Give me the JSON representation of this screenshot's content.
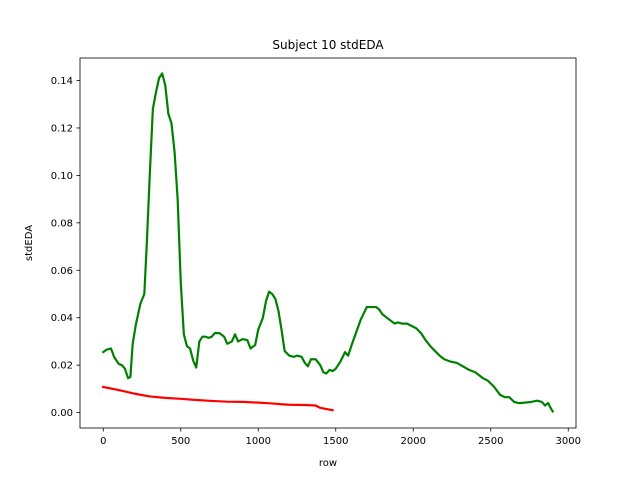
{
  "chart_data": {
    "type": "line",
    "title": "Subject 10 stdEDA",
    "xlabel": "row",
    "ylabel": "stdEDA",
    "xlim": [
      -150,
      3050
    ],
    "ylim": [
      -0.0065,
      0.1495
    ],
    "grid": false,
    "x_ticks": [
      0,
      500,
      1000,
      1500,
      2000,
      2500,
      3000
    ],
    "x_tick_labels": [
      "0",
      "500",
      "1000",
      "1500",
      "2000",
      "2500",
      "3000"
    ],
    "y_ticks": [
      0.0,
      0.02,
      0.04,
      0.06,
      0.08,
      0.1,
      0.12,
      0.14
    ],
    "y_tick_labels": [
      "0.00",
      "0.02",
      "0.04",
      "0.06",
      "0.08",
      "0.10",
      "0.12",
      "0.14"
    ],
    "series": [
      {
        "color": "#008000",
        "points": [
          [
            0,
            0.0255
          ],
          [
            20,
            0.0265
          ],
          [
            50,
            0.027
          ],
          [
            70,
            0.0235
          ],
          [
            100,
            0.0205
          ],
          [
            120,
            0.02
          ],
          [
            140,
            0.0185
          ],
          [
            160,
            0.0145
          ],
          [
            175,
            0.015
          ],
          [
            190,
            0.029
          ],
          [
            210,
            0.037
          ],
          [
            240,
            0.046
          ],
          [
            265,
            0.05
          ],
          [
            280,
            0.07
          ],
          [
            300,
            0.1
          ],
          [
            320,
            0.128
          ],
          [
            340,
            0.135
          ],
          [
            360,
            0.141
          ],
          [
            380,
            0.143
          ],
          [
            400,
            0.138
          ],
          [
            420,
            0.126
          ],
          [
            440,
            0.122
          ],
          [
            460,
            0.11
          ],
          [
            480,
            0.09
          ],
          [
            500,
            0.055
          ],
          [
            520,
            0.033
          ],
          [
            540,
            0.028
          ],
          [
            560,
            0.027
          ],
          [
            580,
            0.022
          ],
          [
            600,
            0.019
          ],
          [
            620,
            0.03
          ],
          [
            640,
            0.032
          ],
          [
            660,
            0.032
          ],
          [
            680,
            0.0315
          ],
          [
            700,
            0.032
          ],
          [
            720,
            0.0335
          ],
          [
            750,
            0.0335
          ],
          [
            780,
            0.032
          ],
          [
            800,
            0.029
          ],
          [
            830,
            0.03
          ],
          [
            850,
            0.033
          ],
          [
            870,
            0.03
          ],
          [
            900,
            0.031
          ],
          [
            930,
            0.0305
          ],
          [
            950,
            0.027
          ],
          [
            980,
            0.0285
          ],
          [
            1000,
            0.035
          ],
          [
            1030,
            0.04
          ],
          [
            1050,
            0.047
          ],
          [
            1070,
            0.051
          ],
          [
            1090,
            0.05
          ],
          [
            1110,
            0.048
          ],
          [
            1130,
            0.043
          ],
          [
            1150,
            0.035
          ],
          [
            1170,
            0.026
          ],
          [
            1200,
            0.024
          ],
          [
            1230,
            0.0235
          ],
          [
            1250,
            0.024
          ],
          [
            1280,
            0.0235
          ],
          [
            1300,
            0.021
          ],
          [
            1320,
            0.0195
          ],
          [
            1340,
            0.0225
          ],
          [
            1370,
            0.0225
          ],
          [
            1400,
            0.02
          ],
          [
            1420,
            0.017
          ],
          [
            1440,
            0.0165
          ],
          [
            1460,
            0.018
          ],
          [
            1480,
            0.0175
          ],
          [
            1500,
            0.0185
          ],
          [
            1530,
            0.0215
          ],
          [
            1560,
            0.0255
          ],
          [
            1580,
            0.024
          ],
          [
            1600,
            0.028
          ],
          [
            1630,
            0.0335
          ],
          [
            1660,
            0.039
          ],
          [
            1700,
            0.0445
          ],
          [
            1730,
            0.0445
          ],
          [
            1760,
            0.0445
          ],
          [
            1780,
            0.0435
          ],
          [
            1800,
            0.0415
          ],
          [
            1830,
            0.04
          ],
          [
            1860,
            0.0385
          ],
          [
            1880,
            0.0375
          ],
          [
            1900,
            0.038
          ],
          [
            1930,
            0.0375
          ],
          [
            1960,
            0.0375
          ],
          [
            1990,
            0.0365
          ],
          [
            2020,
            0.0355
          ],
          [
            2050,
            0.0335
          ],
          [
            2080,
            0.0305
          ],
          [
            2110,
            0.028
          ],
          [
            2140,
            0.026
          ],
          [
            2170,
            0.024
          ],
          [
            2200,
            0.0225
          ],
          [
            2240,
            0.0215
          ],
          [
            2280,
            0.021
          ],
          [
            2320,
            0.0195
          ],
          [
            2360,
            0.018
          ],
          [
            2400,
            0.017
          ],
          [
            2450,
            0.0145
          ],
          [
            2480,
            0.0135
          ],
          [
            2520,
            0.011
          ],
          [
            2560,
            0.0075
          ],
          [
            2590,
            0.0065
          ],
          [
            2620,
            0.0065
          ],
          [
            2650,
            0.0045
          ],
          [
            2680,
            0.004
          ],
          [
            2720,
            0.0042
          ],
          [
            2760,
            0.0045
          ],
          [
            2800,
            0.005
          ],
          [
            2830,
            0.0045
          ],
          [
            2850,
            0.003
          ],
          [
            2870,
            0.004
          ],
          [
            2890,
            0.0015
          ],
          [
            2900,
            0.0005
          ]
        ]
      },
      {
        "color": "#ff0000",
        "points": [
          [
            0,
            0.0108
          ],
          [
            100,
            0.0095
          ],
          [
            200,
            0.008
          ],
          [
            300,
            0.0068
          ],
          [
            400,
            0.0062
          ],
          [
            500,
            0.0058
          ],
          [
            600,
            0.0053
          ],
          [
            700,
            0.0049
          ],
          [
            800,
            0.0046
          ],
          [
            900,
            0.0045
          ],
          [
            1000,
            0.0042
          ],
          [
            1100,
            0.0038
          ],
          [
            1150,
            0.0035
          ],
          [
            1200,
            0.0033
          ],
          [
            1300,
            0.0032
          ],
          [
            1370,
            0.003
          ],
          [
            1400,
            0.002
          ],
          [
            1480,
            0.001
          ]
        ]
      }
    ]
  }
}
